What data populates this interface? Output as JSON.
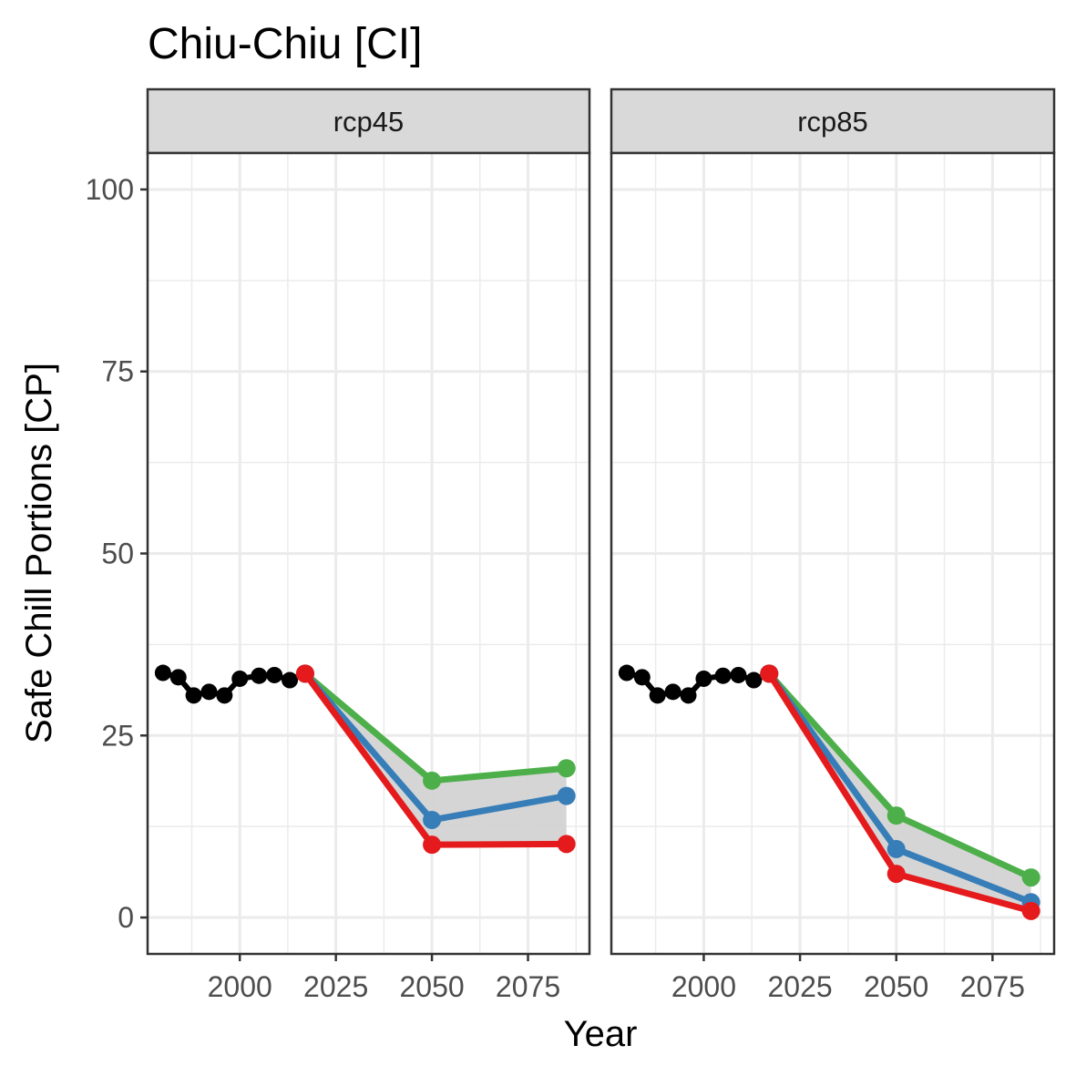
{
  "chart_data": {
    "type": "line",
    "title": "Chiu-Chiu [CI]",
    "xlabel": "Year",
    "ylabel": "Safe Chill Portions [CP]",
    "xlim": [
      1976,
      2091
    ],
    "ylim": [
      -5,
      105
    ],
    "x_ticks": [
      2000,
      2025,
      2050,
      2075
    ],
    "y_ticks": [
      0,
      25,
      50,
      75,
      100
    ],
    "grid": true,
    "legend": "none",
    "colors": {
      "historic": "#000000",
      "optimistic": "#4DAF4A",
      "intermediate": "#377EB8",
      "pessimistic": "#E41A1C",
      "ribbon": "#D3D3D3"
    },
    "historic": {
      "x": [
        1980,
        1984,
        1988,
        1992,
        1996,
        2000,
        2005,
        2009,
        2013,
        2017
      ],
      "y": [
        33.6,
        33.0,
        30.5,
        31.0,
        30.5,
        32.8,
        33.2,
        33.3,
        32.6,
        33.5
      ]
    },
    "panels": [
      {
        "label": "rcp45",
        "x": [
          2017,
          2050,
          2085
        ],
        "series": [
          {
            "key": "optimistic",
            "values": [
              33.5,
              18.8,
              20.5
            ]
          },
          {
            "key": "intermediate",
            "values": [
              33.5,
              13.4,
              16.7
            ]
          },
          {
            "key": "pessimistic",
            "values": [
              33.5,
              10.0,
              10.1
            ]
          }
        ]
      },
      {
        "label": "rcp85",
        "x": [
          2017,
          2050,
          2085
        ],
        "series": [
          {
            "key": "optimistic",
            "values": [
              33.5,
              14.0,
              5.5
            ]
          },
          {
            "key": "intermediate",
            "values": [
              33.5,
              9.4,
              2.1
            ]
          },
          {
            "key": "pessimistic",
            "values": [
              33.5,
              6.0,
              0.9
            ]
          }
        ]
      }
    ]
  }
}
